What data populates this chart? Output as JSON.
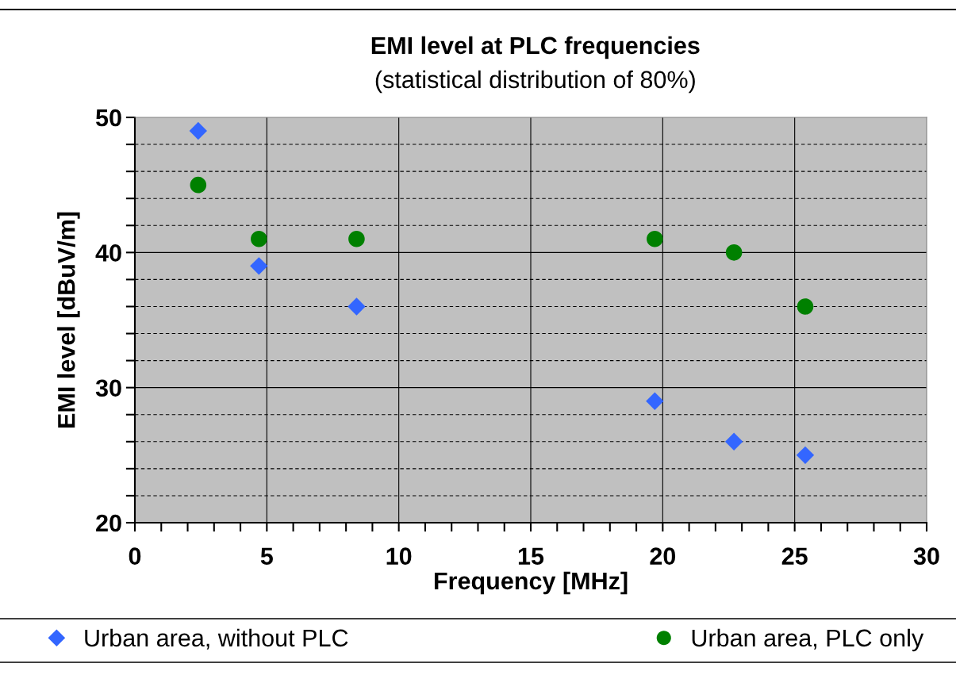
{
  "chart_data": {
    "type": "scatter",
    "title": "EMI level at PLC frequencies",
    "subtitle": "(statistical distribution of 80%)",
    "xlabel": "Frequency [MHz]",
    "ylabel": "EMI level [dBuV/m]",
    "x": [
      2.4,
      4.7,
      8.4,
      19.7,
      22.7,
      25.4
    ],
    "series": [
      {
        "name": "Urban area, without PLC",
        "color": "#3366ff",
        "marker": "diamond",
        "values": [
          49,
          39,
          36,
          29,
          26,
          25
        ]
      },
      {
        "name": "Urban area, PLC only",
        "color": "#008000",
        "marker": "circle",
        "values": [
          45,
          41,
          41,
          41,
          40,
          36
        ]
      }
    ],
    "xlim": [
      0,
      30
    ],
    "ylim": [
      20,
      50
    ],
    "xticks": [
      0,
      {
        "value": 1,
        "label": null
      },
      {
        "value": 2,
        "label": null
      },
      {
        "value": 3,
        "label": null
      },
      {
        "value": 4,
        "label": null
      },
      5,
      {
        "value": 6,
        "label": null
      },
      {
        "value": 7,
        "label": null
      },
      {
        "value": 8,
        "label": null
      },
      {
        "value": 9,
        "label": null
      },
      10,
      {
        "value": 11,
        "label": null
      },
      {
        "value": 12,
        "label": null
      },
      {
        "value": 13,
        "label": null
      },
      {
        "value": 14,
        "label": null
      },
      15,
      {
        "value": 16,
        "label": null
      },
      {
        "value": 17,
        "label": null
      },
      {
        "value": 18,
        "label": null
      },
      {
        "value": 19,
        "label": null
      },
      20,
      {
        "value": 21,
        "label": null
      },
      {
        "value": 22,
        "label": null
      },
      {
        "value": 23,
        "label": null
      },
      {
        "value": 24,
        "label": null
      },
      25,
      {
        "value": 26,
        "label": null
      },
      {
        "value": 27,
        "label": null
      },
      {
        "value": 28,
        "label": null
      },
      {
        "value": 29,
        "label": null
      },
      30
    ],
    "yticks": [
      20,
      {
        "value": 22,
        "label": null
      },
      {
        "value": 24,
        "label": null
      },
      {
        "value": 26,
        "label": null
      },
      {
        "value": 28,
        "label": null
      },
      30,
      {
        "value": 32,
        "label": null
      },
      {
        "value": 34,
        "label": null
      },
      {
        "value": 36,
        "label": null
      },
      {
        "value": 38,
        "label": null
      },
      40,
      {
        "value": 42,
        "label": null
      },
      {
        "value": 44,
        "label": null
      },
      {
        "value": 46,
        "label": null
      },
      {
        "value": 48,
        "label": null
      },
      50
    ],
    "grid": true,
    "legend": "bottom"
  }
}
